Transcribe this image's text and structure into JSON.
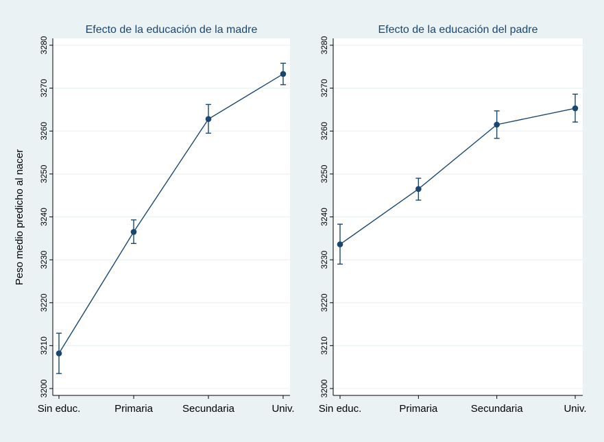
{
  "ylabel": "Peso medio predicho al nacer",
  "colors": {
    "background": "#eaf2f3",
    "plot_bg": "#ffffff",
    "series": "#1a476f",
    "grid": "#eaf2f3",
    "axis": "#000000"
  },
  "chart_data": [
    {
      "type": "line",
      "title": "Efecto de la educación de la madre",
      "categories": [
        "Sin educ.",
        "Primaria",
        "Secundaria",
        "Univ."
      ],
      "values": [
        3208.2,
        3236.5,
        3262.8,
        3273.3
      ],
      "ci_low": [
        3203.5,
        3233.8,
        3259.5,
        3270.8
      ],
      "ci_high": [
        3212.9,
        3239.3,
        3266.2,
        3275.8
      ],
      "ylim": [
        3200,
        3280
      ],
      "yticks": [
        3200,
        3210,
        3220,
        3230,
        3240,
        3250,
        3260,
        3270,
        3280
      ],
      "ytick_labels": [
        "3200",
        "3210",
        "3220",
        "3230",
        "3240",
        "3250",
        "3260",
        "3270",
        "3280"
      ],
      "xlabel": "",
      "ylabel": "Peso medio predicho al nacer",
      "grid": true
    },
    {
      "type": "line",
      "title": "Efecto de la educación del padre",
      "categories": [
        "Sin educ.",
        "Primaria",
        "Secundaria",
        "Univ."
      ],
      "values": [
        3233.6,
        3246.5,
        3261.5,
        3265.3
      ],
      "ci_low": [
        3229.0,
        3243.9,
        3258.3,
        3262.1
      ],
      "ci_high": [
        3238.3,
        3249.0,
        3264.7,
        3268.6
      ],
      "ylim": [
        3200,
        3280
      ],
      "yticks": [
        3200,
        3210,
        3220,
        3230,
        3240,
        3250,
        3260,
        3270,
        3280
      ],
      "ytick_labels": [
        "3200",
        "3210",
        "3220",
        "3230",
        "3240",
        "3250",
        "3260",
        "3270",
        "3280"
      ],
      "xlabel": "",
      "ylabel": "",
      "grid": true
    }
  ]
}
